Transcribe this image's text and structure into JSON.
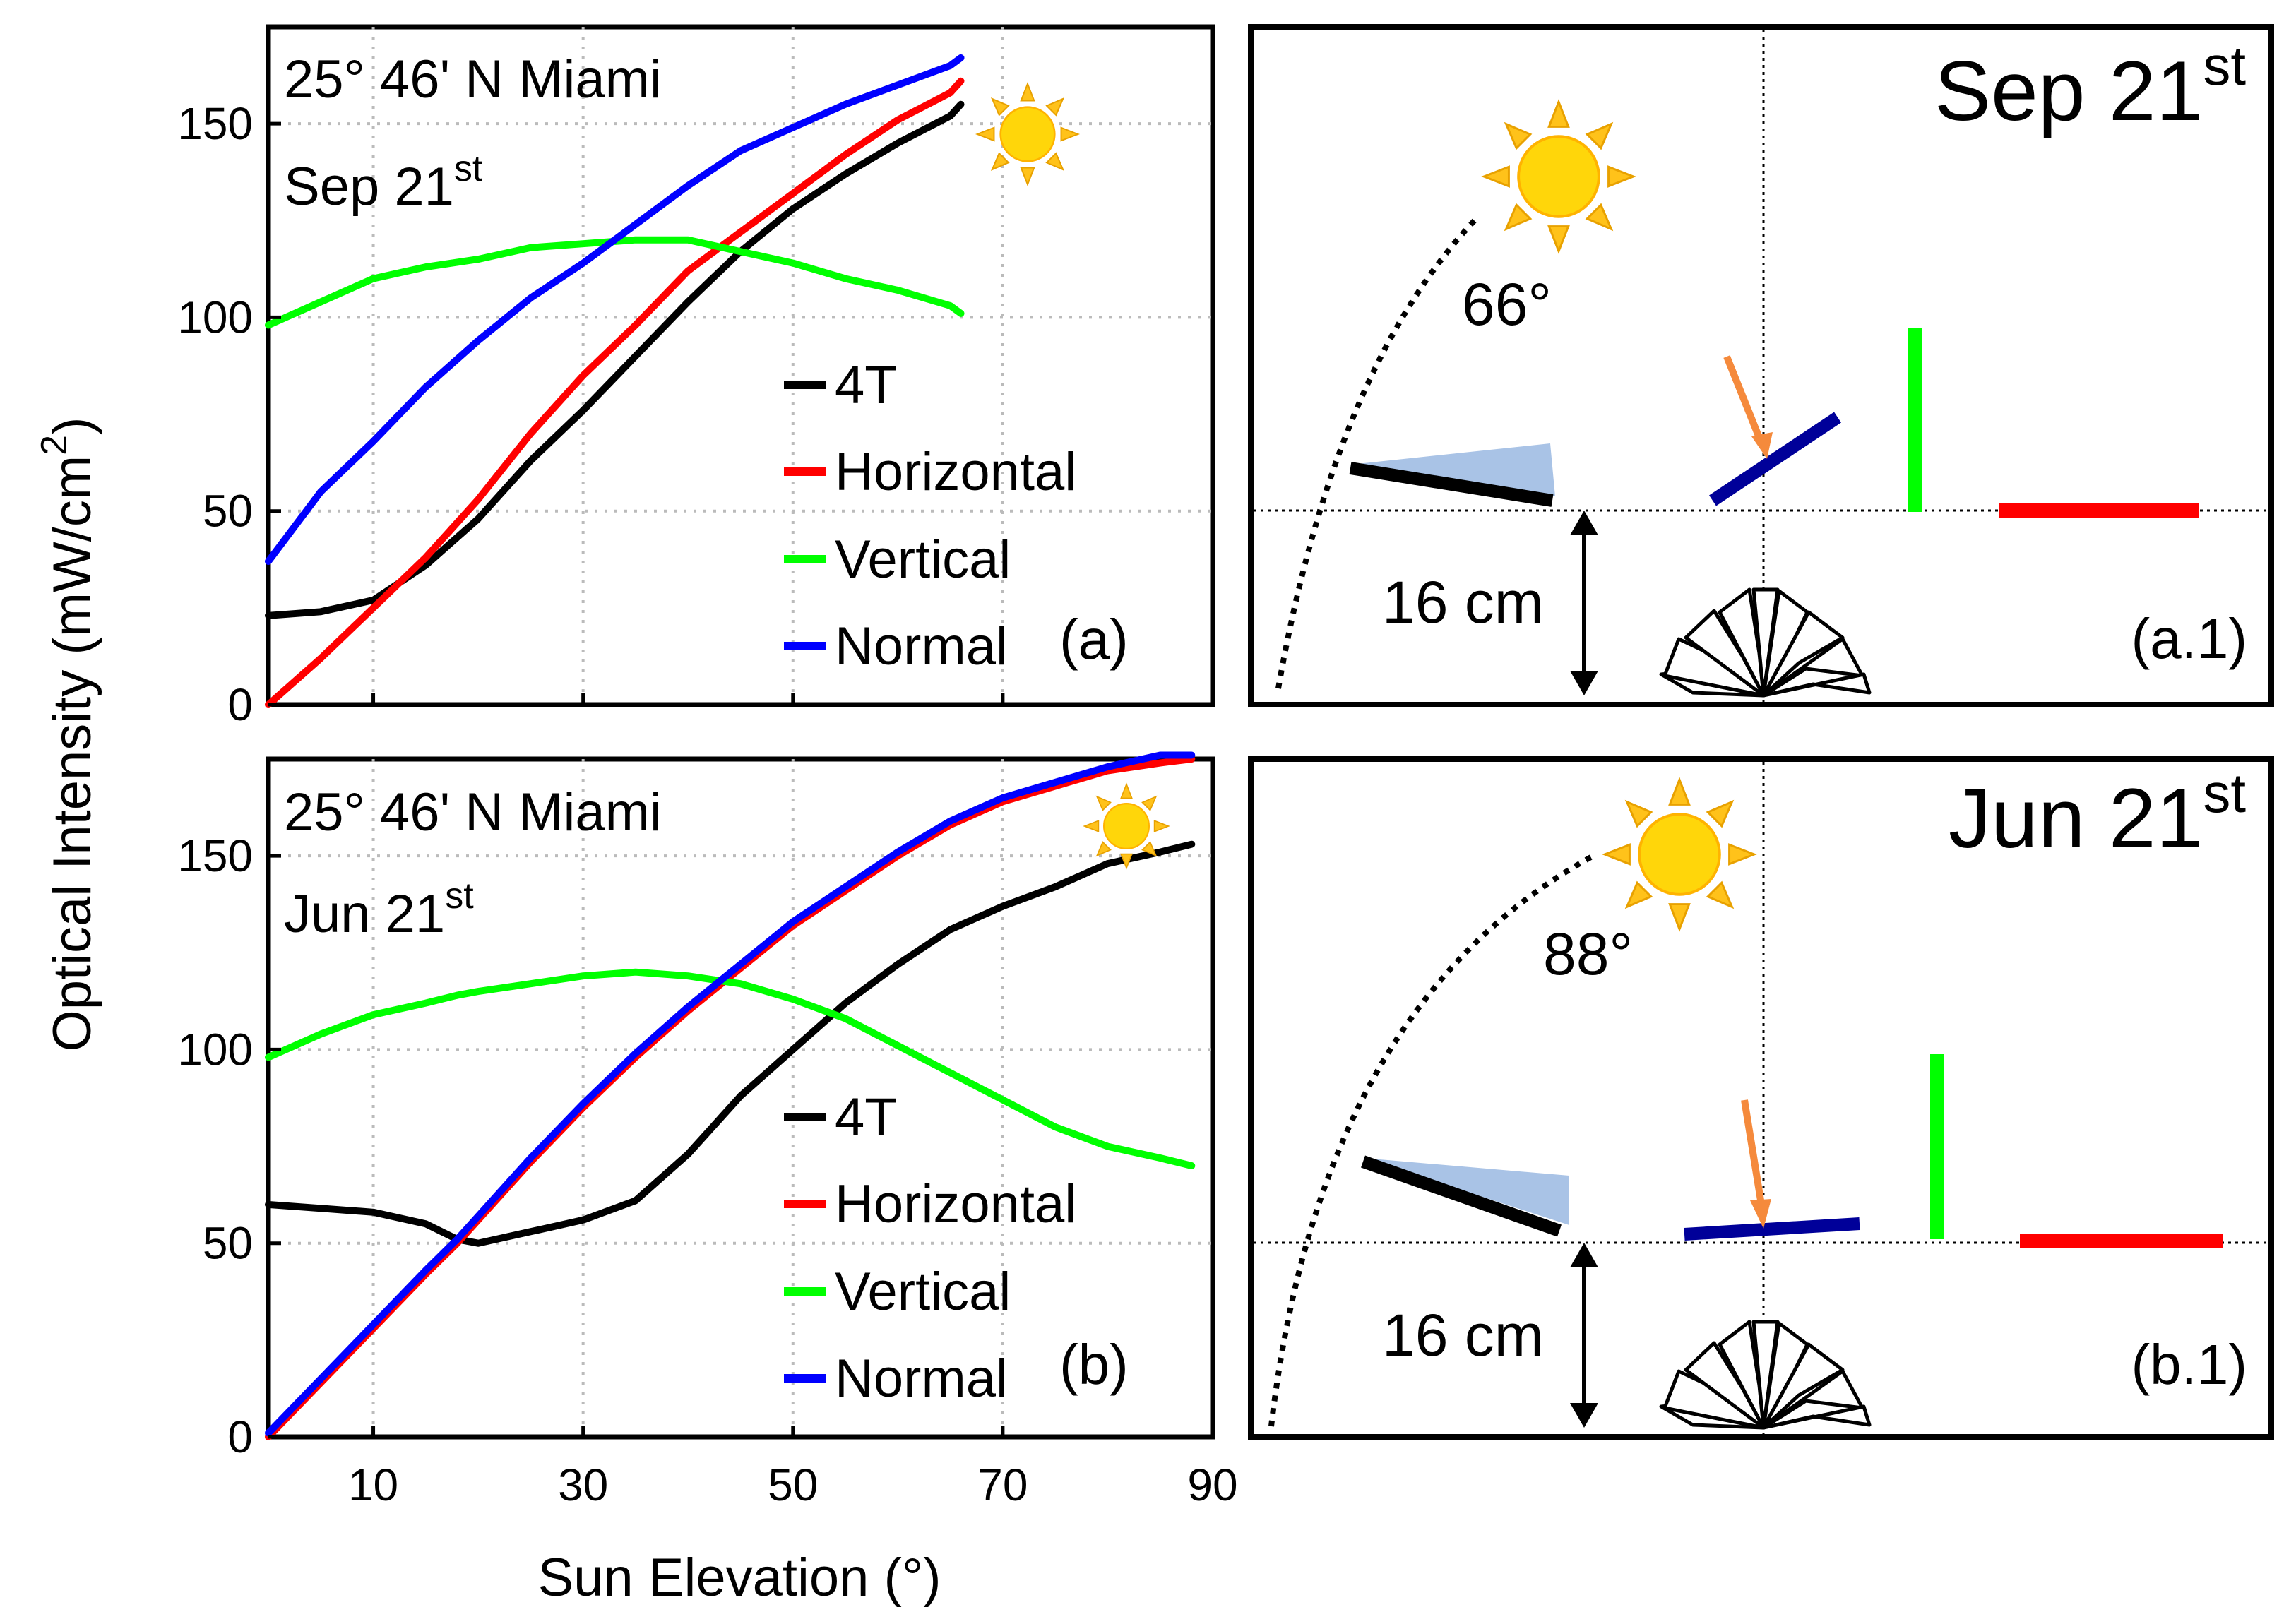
{
  "colors": {
    "4T": "#000000",
    "Horizontal": "#ff0000",
    "Vertical": "#00ff00",
    "Normal": "#0000ff",
    "panel_normal": "#000099",
    "arrow": "#f58a3c",
    "shade": "#a9c3e6",
    "sun_core": "#ffd60a",
    "sun_ray": "#ffc21a"
  },
  "axes": {
    "ylabel": "Optical Intensity (mW/cm",
    "ylabel_sup": "2",
    "ylabel_end": ")",
    "xlabel": "Sun Elevation (°)",
    "xticks": [
      "10",
      "30",
      "50",
      "70",
      "90"
    ],
    "yticks": [
      "0",
      "50",
      "100",
      "150"
    ]
  },
  "chart_data": [
    {
      "type": "line",
      "title": "25° 46' N Miami",
      "subtitle": "Sep 21",
      "subtitle_sup": "st",
      "panel_label": "(a)",
      "xlabel": "Sun Elevation (°)",
      "ylabel": "Optical Intensity (mW/cm2)",
      "xlim": [
        0,
        90
      ],
      "ylim": [
        0,
        175
      ],
      "grid": true,
      "legend": [
        "4T",
        "Horizontal",
        "Vertical",
        "Normal"
      ],
      "x": [
        0,
        5,
        10,
        15,
        20,
        25,
        30,
        35,
        40,
        45,
        50,
        55,
        60,
        65,
        66
      ],
      "series": [
        {
          "name": "4T",
          "values": [
            23,
            24,
            27,
            36,
            48,
            63,
            76,
            90,
            104,
            117,
            128,
            137,
            145,
            152,
            155
          ]
        },
        {
          "name": "Horizontal",
          "values": [
            0,
            12,
            25,
            38,
            53,
            70,
            85,
            98,
            112,
            122,
            132,
            142,
            151,
            158,
            161
          ]
        },
        {
          "name": "Vertical",
          "values": [
            98,
            104,
            110,
            113,
            115,
            118,
            119,
            120,
            120,
            117,
            114,
            110,
            107,
            103,
            101
          ]
        },
        {
          "name": "Normal",
          "values": [
            37,
            55,
            68,
            82,
            94,
            105,
            114,
            124,
            134,
            143,
            149,
            155,
            160,
            165,
            167
          ]
        }
      ]
    },
    {
      "type": "line",
      "title": "25° 46' N Miami",
      "subtitle": "Jun 21",
      "subtitle_sup": "st",
      "panel_label": "(b)",
      "xlabel": "Sun Elevation (°)",
      "ylabel": "Optical Intensity (mW/cm2)",
      "xlim": [
        0,
        90
      ],
      "ylim": [
        0,
        175
      ],
      "grid": true,
      "legend": [
        "4T",
        "Horizontal",
        "Vertical",
        "Normal"
      ],
      "x": [
        0,
        5,
        10,
        15,
        18,
        20,
        25,
        30,
        35,
        40,
        45,
        50,
        55,
        60,
        65,
        70,
        75,
        80,
        85,
        88
      ],
      "series": [
        {
          "name": "4T",
          "values": [
            60,
            59,
            58,
            55,
            51,
            50,
            53,
            56,
            61,
            73,
            88,
            100,
            112,
            122,
            131,
            137,
            142,
            148,
            151,
            153
          ]
        },
        {
          "name": "Horizontal",
          "values": [
            0,
            14,
            28,
            42,
            50,
            56,
            71,
            85,
            98,
            110,
            121,
            132,
            141,
            150,
            158,
            164,
            168,
            172,
            174,
            175
          ]
        },
        {
          "name": "Vertical",
          "values": [
            98,
            104,
            109,
            112,
            114,
            115,
            117,
            119,
            120,
            119,
            117,
            113,
            108,
            101,
            94,
            87,
            80,
            75,
            72,
            70
          ]
        },
        {
          "name": "Normal",
          "values": [
            1,
            15,
            29,
            43,
            51,
            57,
            72,
            86,
            99,
            111,
            122,
            133,
            142,
            151,
            159,
            165,
            169,
            173,
            176,
            176
          ]
        }
      ]
    }
  ],
  "diagrams": [
    {
      "date": "Sep 21",
      "date_sup": "st",
      "angle": "66°",
      "label": "(a.1)",
      "distance": "16 cm"
    },
    {
      "date": "Jun 21",
      "date_sup": "st",
      "angle": "88°",
      "label": "(b.1)",
      "distance": "16 cm"
    }
  ]
}
